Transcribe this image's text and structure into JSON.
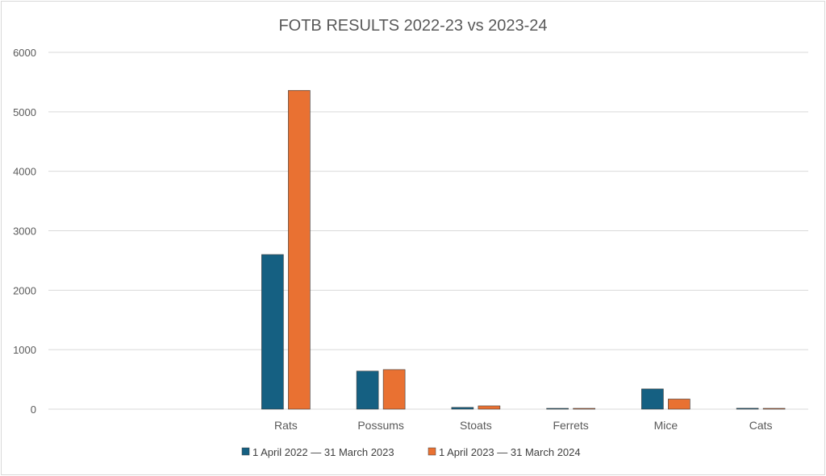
{
  "chart_data": {
    "type": "bar",
    "title": "FOTB RESULTS 2022-23 vs 2023-24",
    "categories": [
      "",
      "",
      "Rats",
      "Possums",
      "Stoats",
      "Ferrets",
      "Mice",
      "Cats"
    ],
    "series": [
      {
        "name": "1 April 2022 — 31 March 2023",
        "color": "#156082",
        "values": [
          0,
          0,
          2600,
          640,
          30,
          3,
          340,
          15
        ]
      },
      {
        "name": "1 April 2023 — 31 March 2024",
        "color": "#E97132",
        "values": [
          0,
          0,
          5360,
          665,
          55,
          2,
          170,
          8
        ]
      }
    ],
    "ylim": [
      0,
      6000
    ],
    "yticks": [
      0,
      1000,
      2000,
      3000,
      4000,
      5000,
      6000
    ],
    "grid": true,
    "legend": "bottom"
  }
}
